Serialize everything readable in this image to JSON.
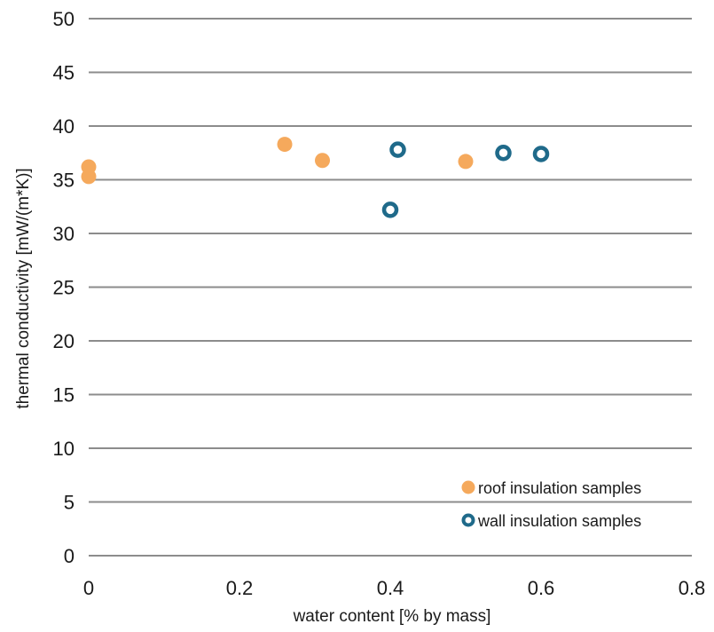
{
  "chart_data": {
    "type": "scatter",
    "title": "",
    "xlabel": "water content [% by mass]",
    "ylabel": "thermal conductivity [mW/(m*K)]",
    "xlim": [
      0,
      0.8
    ],
    "ylim": [
      0,
      50
    ],
    "x_ticks": [
      "0",
      "0.2",
      "0.4",
      "0.6",
      "0.8"
    ],
    "y_ticks": [
      "0",
      "5",
      "10",
      "15",
      "20",
      "25",
      "30",
      "35",
      "40",
      "45",
      "50"
    ],
    "grid": "horizontal",
    "legend_position": "bottom-right",
    "series": [
      {
        "name": "roof insulation samples",
        "marker": "filled-circle",
        "color": "#F5A95C",
        "points": [
          {
            "x": 0.0,
            "y": 36.2
          },
          {
            "x": 0.0,
            "y": 35.3
          },
          {
            "x": 0.26,
            "y": 38.3
          },
          {
            "x": 0.31,
            "y": 36.8
          },
          {
            "x": 0.5,
            "y": 36.7
          }
        ]
      },
      {
        "name": "wall insulation samples",
        "marker": "hollow-circle",
        "color": "#1F6A8A",
        "points": [
          {
            "x": 0.4,
            "y": 32.2
          },
          {
            "x": 0.41,
            "y": 37.8
          },
          {
            "x": 0.55,
            "y": 37.5
          },
          {
            "x": 0.6,
            "y": 37.4
          }
        ]
      }
    ]
  }
}
